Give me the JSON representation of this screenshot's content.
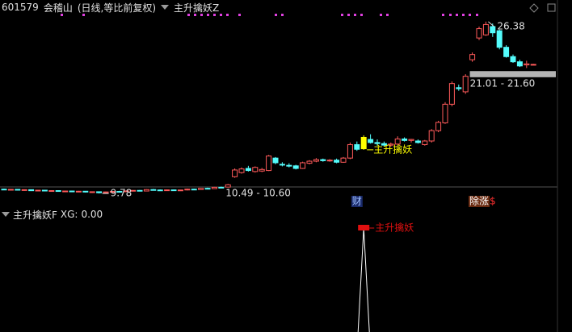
{
  "header": {
    "code": "601579",
    "name": "会稽山",
    "period": "(日线,等比前复权)",
    "indicator": "主升擒妖Z"
  },
  "chart_data": {
    "type": "candlestick",
    "ylim": [
      9.4,
      27.3
    ],
    "up_color": "#ff5a5a",
    "down_color": "#54fcfc",
    "ohlc": [
      [
        10.2,
        10.25,
        10.12,
        10.15
      ],
      [
        10.15,
        10.22,
        10.1,
        10.18
      ],
      [
        10.18,
        10.2,
        10.08,
        10.12
      ],
      [
        10.12,
        10.18,
        10.05,
        10.15
      ],
      [
        10.15,
        10.16,
        10.02,
        10.05
      ],
      [
        10.05,
        10.12,
        10.0,
        10.1
      ],
      [
        10.1,
        10.14,
        10.02,
        10.04
      ],
      [
        10.04,
        10.1,
        9.98,
        10.06
      ],
      [
        10.06,
        10.08,
        9.95,
        9.98
      ],
      [
        9.98,
        10.05,
        9.92,
        10.02
      ],
      [
        10.02,
        10.06,
        9.95,
        9.97
      ],
      [
        9.97,
        10.03,
        9.9,
        10.0
      ],
      [
        10.0,
        10.02,
        9.88,
        9.92
      ],
      [
        9.92,
        9.98,
        9.84,
        9.95
      ],
      [
        9.95,
        9.97,
        9.78,
        9.85
      ],
      [
        9.85,
        9.96,
        9.82,
        9.93
      ],
      [
        9.93,
        10.0,
        9.88,
        9.98
      ],
      [
        9.98,
        10.04,
        9.92,
        9.95
      ],
      [
        9.95,
        10.06,
        9.93,
        10.03
      ],
      [
        10.03,
        10.1,
        9.98,
        10.08
      ],
      [
        10.08,
        10.12,
        10.0,
        10.02
      ],
      [
        10.02,
        10.2,
        10.0,
        10.16
      ],
      [
        10.16,
        10.22,
        10.08,
        10.12
      ],
      [
        10.12,
        10.18,
        10.06,
        10.1
      ],
      [
        10.1,
        10.15,
        10.04,
        10.13
      ],
      [
        10.13,
        10.16,
        10.05,
        10.08
      ],
      [
        10.08,
        10.14,
        10.02,
        10.12
      ],
      [
        10.12,
        10.25,
        10.08,
        10.2
      ],
      [
        10.2,
        10.24,
        10.12,
        10.16
      ],
      [
        10.16,
        10.3,
        10.14,
        10.28
      ],
      [
        10.28,
        10.34,
        10.2,
        10.25
      ],
      [
        10.25,
        10.42,
        10.22,
        10.38
      ],
      [
        10.38,
        10.45,
        10.3,
        10.36
      ],
      [
        10.4,
        10.7,
        10.36,
        10.62
      ],
      [
        11.4,
        12.2,
        11.3,
        12.05
      ],
      [
        11.8,
        12.3,
        11.7,
        12.15
      ],
      [
        12.2,
        12.45,
        11.9,
        12.0
      ],
      [
        11.9,
        12.4,
        11.8,
        12.3
      ],
      [
        11.95,
        12.25,
        11.85,
        12.1
      ],
      [
        12.0,
        13.5,
        11.95,
        13.4
      ],
      [
        13.2,
        13.3,
        12.6,
        12.75
      ],
      [
        12.6,
        12.8,
        12.4,
        12.55
      ],
      [
        12.5,
        12.7,
        12.3,
        12.45
      ],
      [
        12.45,
        12.55,
        12.1,
        12.2
      ],
      [
        12.2,
        12.85,
        12.15,
        12.75
      ],
      [
        12.7,
        13.0,
        12.6,
        12.9
      ],
      [
        12.9,
        13.2,
        12.8,
        13.05
      ],
      [
        13.05,
        13.15,
        12.85,
        12.95
      ],
      [
        12.95,
        13.1,
        12.85,
        13.0
      ],
      [
        13.0,
        13.15,
        12.7,
        12.8
      ],
      [
        12.8,
        13.3,
        12.75,
        13.2
      ],
      [
        13.2,
        14.7,
        13.1,
        14.5
      ],
      [
        14.5,
        14.8,
        13.9,
        14.05
      ],
      [
        14.1,
        15.4,
        14.0,
        15.2
      ],
      [
        15.0,
        15.5,
        14.6,
        14.7
      ],
      [
        14.7,
        15.0,
        14.4,
        14.6
      ],
      [
        14.6,
        14.8,
        14.3,
        14.45
      ],
      [
        14.45,
        14.7,
        14.3,
        14.55
      ],
      [
        14.55,
        15.3,
        14.45,
        15.05
      ],
      [
        15.05,
        15.2,
        14.8,
        14.9
      ],
      [
        14.9,
        15.05,
        14.7,
        15.0
      ],
      [
        14.85,
        15.0,
        14.6,
        14.7
      ],
      [
        14.5,
        14.95,
        14.4,
        14.85
      ],
      [
        14.85,
        16.0,
        14.7,
        15.85
      ],
      [
        15.85,
        16.8,
        15.7,
        16.65
      ],
      [
        16.6,
        18.6,
        16.5,
        18.4
      ],
      [
        18.4,
        20.6,
        18.2,
        20.4
      ],
      [
        20.0,
        20.3,
        19.7,
        19.9
      ],
      [
        19.6,
        21.3,
        19.4,
        21.1
      ],
      [
        22.7,
        23.4,
        22.5,
        23.2
      ],
      [
        24.8,
        25.9,
        24.6,
        25.7
      ],
      [
        25.1,
        26.38,
        25.0,
        26.1
      ],
      [
        25.9,
        26.2,
        24.9,
        25.3
      ],
      [
        25.5,
        25.6,
        23.7,
        23.9
      ],
      [
        23.9,
        24.1,
        22.9,
        23.0
      ],
      [
        23.0,
        23.2,
        22.4,
        22.5
      ],
      [
        22.5,
        22.7,
        22.0,
        22.1
      ],
      [
        22.2,
        22.6,
        21.9,
        22.3
      ],
      [
        22.25,
        22.3,
        22.2,
        22.25
      ]
    ],
    "signal": {
      "index": 53,
      "label": "主升擒妖",
      "color": "#ffff00"
    },
    "ranges": [
      {
        "index": 33,
        "low": 10.49,
        "high": 10.6,
        "label": "10.49 - 10.60"
      },
      {
        "index": 69,
        "low": 21.01,
        "high": 21.6,
        "label": "21.01 - 21.60",
        "bar": true
      }
    ],
    "tags": [
      {
        "index": 52,
        "text": "财"
      },
      {
        "index": 70,
        "text": "除涨"
      },
      {
        "index": 72,
        "text": "$"
      }
    ]
  },
  "indicator": {
    "name": "主升擒妖F",
    "xg_label": "XG:",
    "xg": {
      "value": 0,
      "label": "0.00"
    },
    "signal_label": "主升擒妖",
    "ylim": [
      0,
      1
    ],
    "values": [
      0,
      0,
      0,
      0,
      0,
      0,
      0,
      0,
      0,
      0,
      0,
      0,
      0,
      0,
      0,
      0,
      0,
      0,
      0,
      0,
      0,
      0,
      0,
      0,
      0,
      0,
      0,
      0,
      0,
      0,
      0,
      0,
      0,
      0,
      0,
      0,
      0,
      0,
      0,
      0,
      0,
      0,
      0,
      0,
      0,
      0,
      0,
      0,
      0,
      0,
      0,
      0,
      0,
      1,
      0,
      0,
      0,
      0,
      0,
      0,
      0,
      0,
      0,
      0,
      0,
      0,
      0,
      0,
      0,
      0,
      0,
      0,
      0,
      0,
      0,
      0,
      0,
      0,
      0
    ]
  }
}
